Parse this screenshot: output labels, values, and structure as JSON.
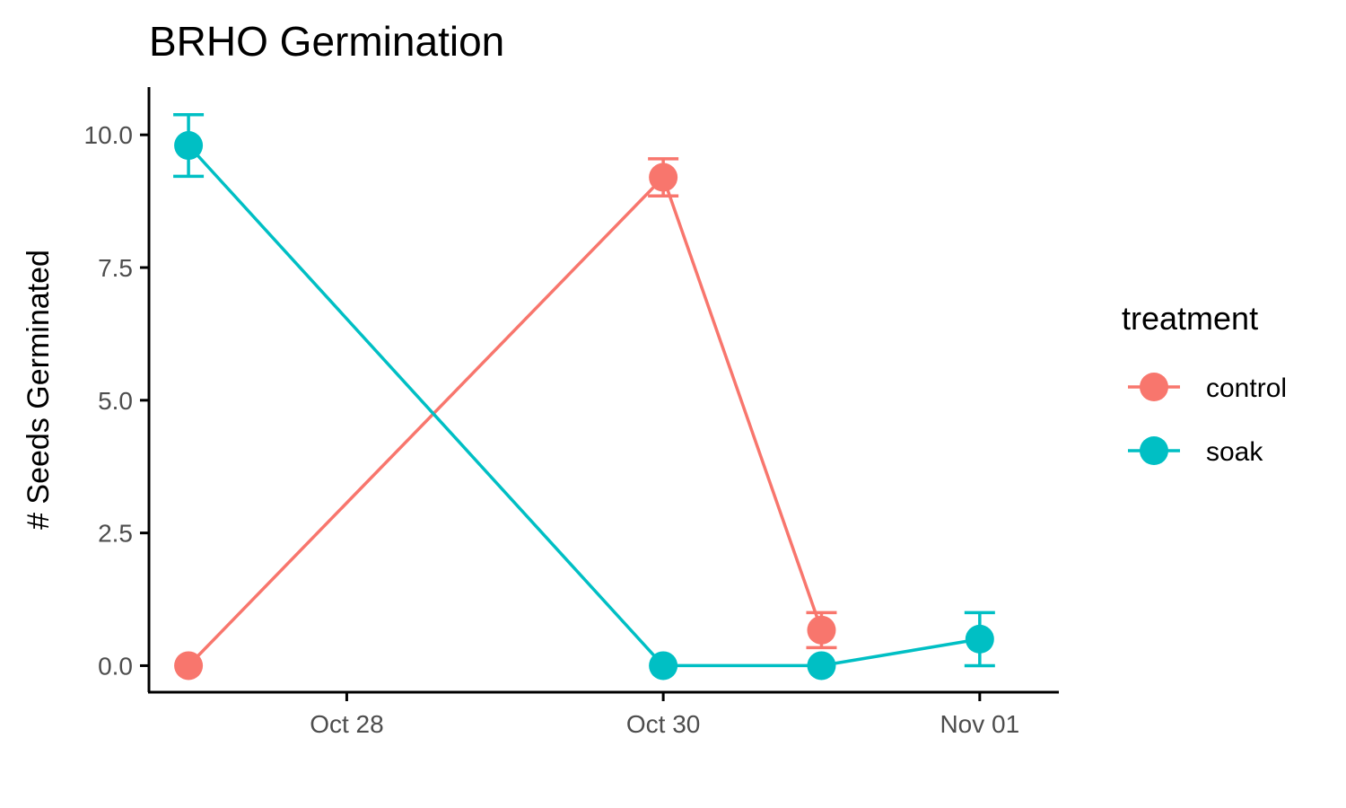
{
  "chart_data": {
    "type": "line",
    "title": "BRHO Germination",
    "xlabel": "",
    "ylabel": "# Seeds Germinated",
    "x_ticks": [
      {
        "date": "2023-10-28",
        "label": "Oct 28"
      },
      {
        "date": "2023-10-30",
        "label": "Oct 30"
      },
      {
        "date": "2023-11-01",
        "label": "Nov 01"
      }
    ],
    "y_ticks": [
      {
        "value": 0,
        "label": "0.0"
      },
      {
        "value": 2.5,
        "label": "2.5"
      },
      {
        "value": 5,
        "label": "5.0"
      },
      {
        "value": 7.5,
        "label": "7.5"
      },
      {
        "value": 10,
        "label": "10.0"
      }
    ],
    "xlim": [
      "2023-10-26 18:00",
      "2023-11-01 12:00"
    ],
    "ylim": [
      -0.5,
      10.9
    ],
    "grid": false,
    "legend": {
      "title": "treatment",
      "position": "right"
    },
    "series": [
      {
        "name": "control",
        "color": "#F8766D",
        "points": [
          {
            "x": "2023-10-27",
            "y": 0,
            "err": 0
          },
          {
            "x": "2023-10-30",
            "y": 9.2,
            "err": 0.35
          },
          {
            "x": "2023-10-31",
            "y": 0.67,
            "err": 0.33
          }
        ]
      },
      {
        "name": "soak",
        "color": "#00BFC4",
        "points": [
          {
            "x": "2023-10-27",
            "y": 9.8,
            "err": 0.58
          },
          {
            "x": "2023-10-30",
            "y": 0,
            "err": 0
          },
          {
            "x": "2023-10-31",
            "y": 0,
            "err": 0
          },
          {
            "x": "2023-11-01",
            "y": 0.5,
            "err": 0.5
          }
        ]
      }
    ]
  }
}
